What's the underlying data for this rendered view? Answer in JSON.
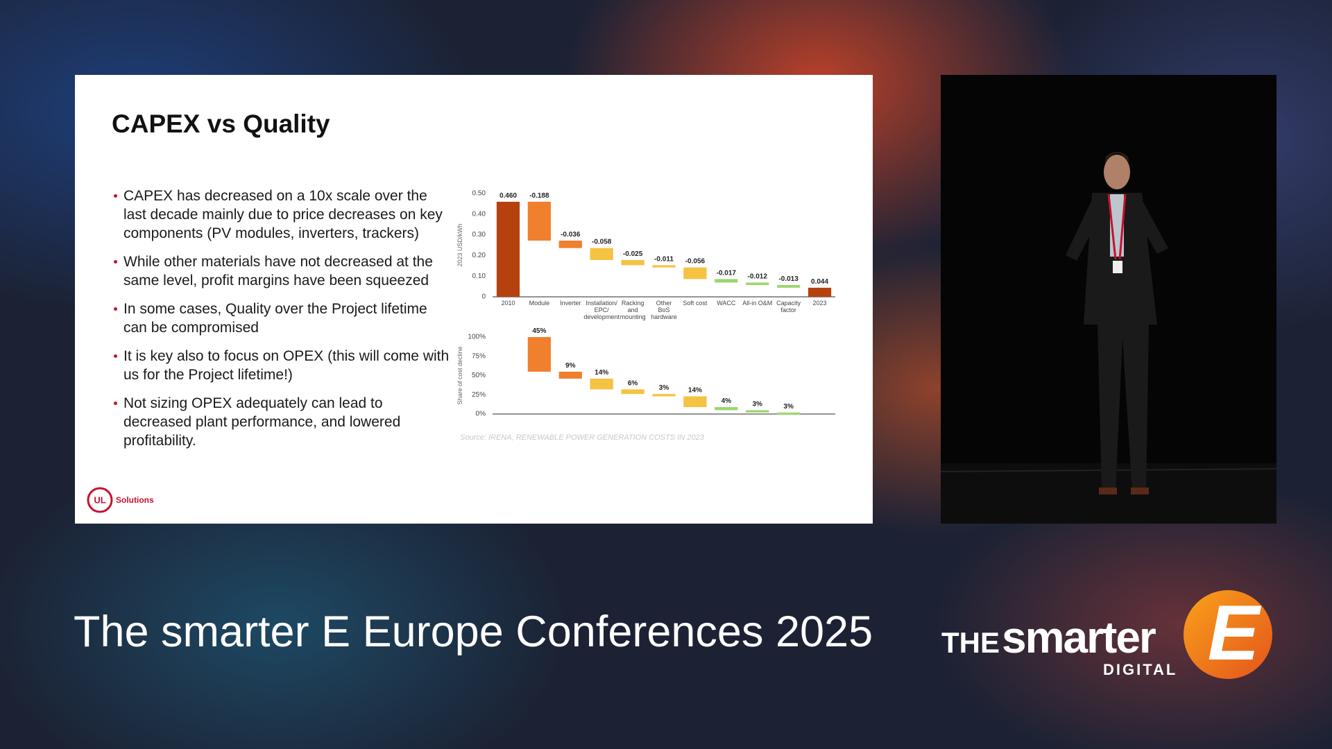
{
  "slide": {
    "title": "CAPEX vs Quality",
    "bullets": [
      "CAPEX has decreased on a 10x scale over the last decade mainly due to price decreases on key components (PV modules, inverters, trackers)",
      "While other materials have not decreased at the same level, profit margins have been squeezed",
      "In some cases, Quality over the Project lifetime can be compromised",
      "It is key also to focus on OPEX (this will come with us for the Project lifetime!)",
      "Not sizing OPEX adequately can lead to decreased plant performance, and lowered profitability."
    ],
    "source": "Source: IRENA, RENEWABLE POWER GENERATION COSTS IN 2023",
    "logo_mark": "UL",
    "logo_text": "Solutions"
  },
  "chart_data": [
    {
      "type": "waterfall",
      "y_label": "2023 USD/kWh",
      "categories": [
        "2010",
        "Module",
        "Inverter",
        "Installation/\nEPC/\ndevelopment",
        "Racking\nand\nmounting",
        "Other\nBoS\nhardware",
        "Soft cost",
        "WACC",
        "All-in O&M",
        "Capacity\nfactor",
        "2023"
      ],
      "values": [
        0.46,
        -0.188,
        -0.036,
        -0.058,
        -0.025,
        -0.011,
        -0.056,
        -0.017,
        -0.012,
        -0.013,
        0.044
      ],
      "value_labels": [
        "0.460",
        "-0.188",
        "-0.036",
        "-0.058",
        "-0.025",
        "-0.011",
        "-0.056",
        "-0.017",
        "-0.012",
        "-0.013",
        "0.044"
      ],
      "colors": [
        "#b5420e",
        "#f07f2e",
        "#f07f2e",
        "#f5c242",
        "#f5c242",
        "#f5c242",
        "#f5c242",
        "#9bd770",
        "#9bd770",
        "#9bd770",
        "#b5420e"
      ],
      "ylim": [
        0,
        0.5
      ],
      "yticks": [
        0,
        {
          "value": 0.1,
          "label": "0.10"
        },
        {
          "value": 0.2,
          "label": "0.20"
        },
        {
          "value": 0.3,
          "label": "0.30"
        },
        {
          "value": 0.4,
          "label": "0.40"
        },
        {
          "value": 0.5,
          "label": "0.50"
        }
      ]
    },
    {
      "type": "decline",
      "y_label": "Share of cost decline",
      "values": [
        45,
        9,
        14,
        6,
        3,
        14,
        4,
        3,
        3
      ],
      "value_labels": [
        "45%",
        "9%",
        "14%",
        "6%",
        "3%",
        "14%",
        "4%",
        "3%",
        "3%"
      ],
      "colors": [
        "#f07f2e",
        "#f07f2e",
        "#f5c242",
        "#f5c242",
        "#f5c242",
        "#f5c242",
        "#9bd770",
        "#9bd770",
        "#9bd770"
      ],
      "ylim": [
        0,
        100
      ],
      "yticks": [
        {
          "value": 0,
          "label": "0%"
        },
        {
          "value": 25,
          "label": "25%"
        },
        {
          "value": 50,
          "label": "50%"
        },
        {
          "value": 75,
          "label": "75%"
        },
        {
          "value": 100,
          "label": "100%"
        }
      ]
    }
  ],
  "banner": {
    "title": "The smarter E Europe Conferences 2025"
  },
  "brand": {
    "the": "THE",
    "smarter": "smarter",
    "digital": "DIGITAL",
    "letter": "E"
  }
}
